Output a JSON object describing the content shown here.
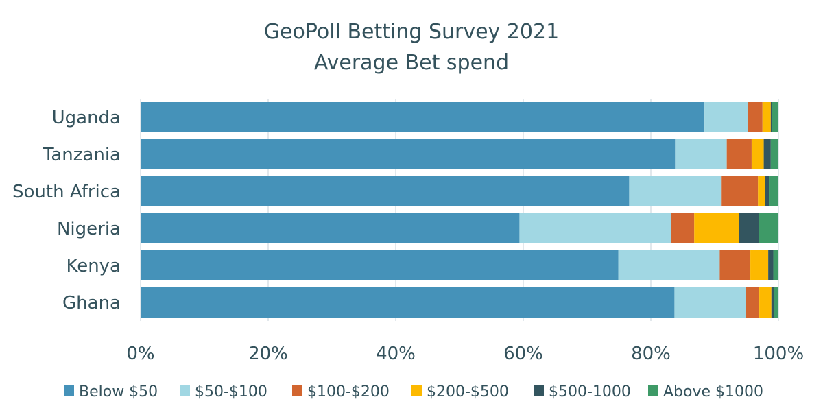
{
  "chart_data": {
    "type": "bar",
    "orientation": "horizontal",
    "stacked": "percent",
    "title": "GeoPoll Betting Survey 2021",
    "subtitle": "Average Bet spend",
    "categories": [
      "Uganda",
      "Tanzania",
      "South Africa",
      "Nigeria",
      "Kenya",
      "Ghana"
    ],
    "series": [
      {
        "name": "Below $50",
        "color": "#4592b9",
        "values": [
          88.4,
          83.8,
          76.6,
          59.4,
          74.9,
          83.7
        ]
      },
      {
        "name": "$50-$100",
        "color": "#a1d7e3",
        "values": [
          6.8,
          8.1,
          14.5,
          23.8,
          15.9,
          11.2
        ]
      },
      {
        "name": "$100-$200",
        "color": "#d2652f",
        "values": [
          2.3,
          3.9,
          5.7,
          3.6,
          4.8,
          2.1
        ]
      },
      {
        "name": "$200-$500",
        "color": "#fdb900",
        "values": [
          1.3,
          1.9,
          1.1,
          7.0,
          2.8,
          1.9
        ]
      },
      {
        "name": "$500-1000",
        "color": "#33555f",
        "values": [
          0.2,
          1.1,
          0.6,
          3.1,
          0.8,
          0.4
        ]
      },
      {
        "name": "Above $1000",
        "color": "#3e9a67",
        "values": [
          1.0,
          1.2,
          1.5,
          3.1,
          0.8,
          0.7
        ]
      }
    ],
    "xlim": [
      0,
      100
    ],
    "xticks": [
      "0%",
      "20%",
      "40%",
      "60%",
      "80%",
      "100%"
    ],
    "grid": true,
    "legend": "bottom"
  }
}
